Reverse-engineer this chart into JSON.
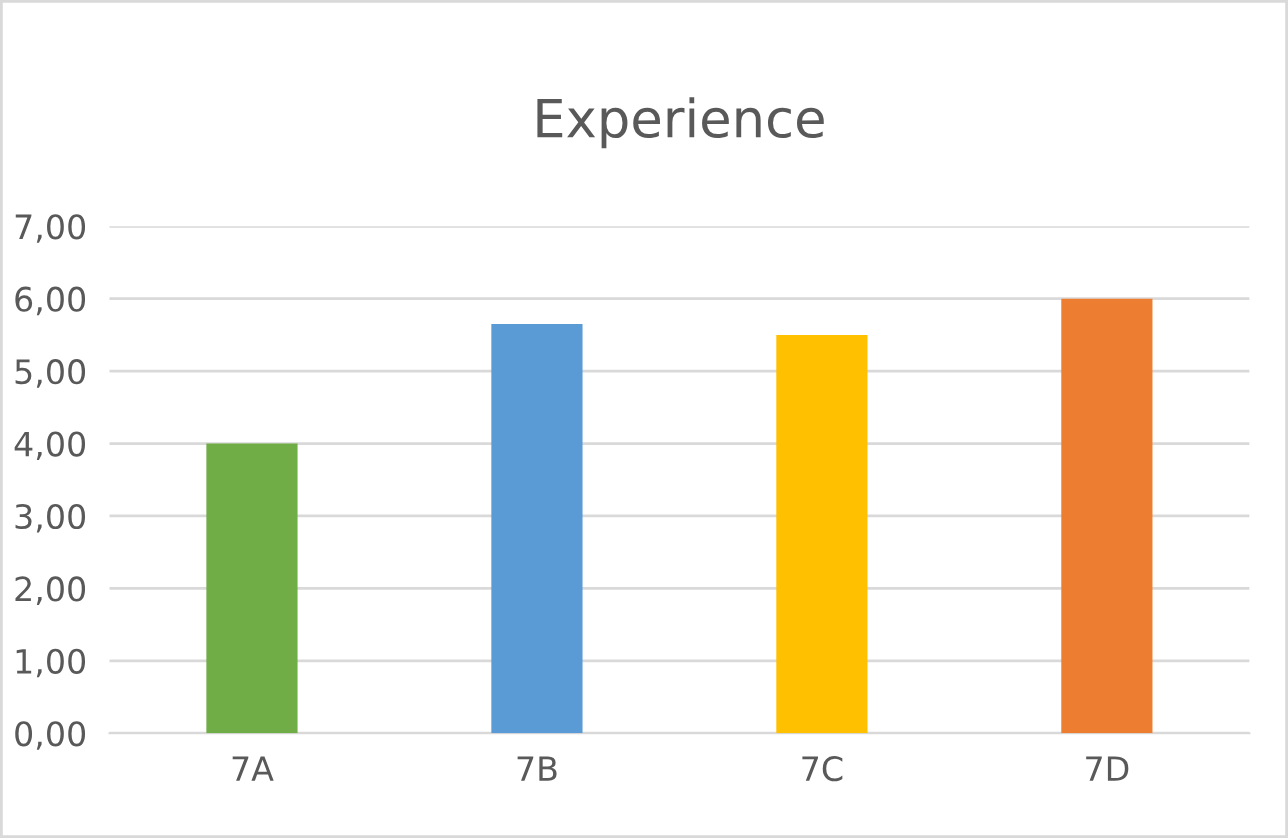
{
  "chart_data": {
    "type": "bar",
    "title": "Experience",
    "categories": [
      "7A",
      "7B",
      "7C",
      "7D"
    ],
    "values": [
      4.0,
      5.65,
      5.5,
      6.0
    ],
    "colors": [
      "#70ad47",
      "#5b9bd5",
      "#ffc000",
      "#ed7d31"
    ],
    "ylim": [
      0,
      7
    ],
    "yticks": [
      {
        "value": 0,
        "label": "0,00"
      },
      {
        "value": 1,
        "label": "1,00"
      },
      {
        "value": 2,
        "label": "2,00"
      },
      {
        "value": 3,
        "label": "3,00"
      },
      {
        "value": 4,
        "label": "4,00"
      },
      {
        "value": 5,
        "label": "5,00"
      },
      {
        "value": 6,
        "label": "6,00"
      },
      {
        "value": 7,
        "label": "7,00"
      }
    ],
    "grid": "y"
  }
}
